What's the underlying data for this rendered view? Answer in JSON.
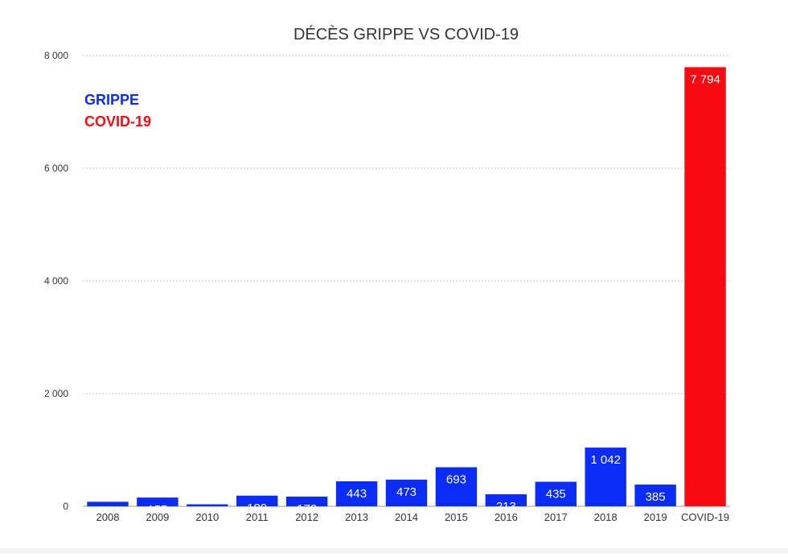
{
  "chart_data": {
    "type": "bar",
    "title": "DÉCÈS GRIPPE VS COVID-19",
    "xlabel": "",
    "ylabel": "",
    "ylim": [
      0,
      8000
    ],
    "grid": true,
    "y_ticks": [
      0,
      2000,
      4000,
      6000,
      8000
    ],
    "y_tick_labels": [
      "0",
      "2 000",
      "4 000",
      "6 000",
      "8 000"
    ],
    "categories": [
      "2008",
      "2009",
      "2010",
      "2011",
      "2012",
      "2013",
      "2014",
      "2015",
      "2016",
      "2017",
      "2018",
      "2019",
      "COVID-19"
    ],
    "values": [
      80,
      155,
      35,
      189,
      172,
      443,
      473,
      693,
      213,
      435,
      1042,
      385,
      7794
    ],
    "value_labels": [
      "",
      "155",
      "",
      "189",
      "172",
      "443",
      "473",
      "693",
      "213",
      "435",
      "1 042",
      "385",
      "7 794"
    ],
    "colors": [
      "#0A2CF5",
      "#0A2CF5",
      "#0A2CF5",
      "#0A2CF5",
      "#0A2CF5",
      "#0A2CF5",
      "#0A2CF5",
      "#0A2CF5",
      "#0A2CF5",
      "#0A2CF5",
      "#0A2CF5",
      "#0A2CF5",
      "#F90A13"
    ],
    "legend": {
      "placement": "top-left",
      "items": [
        {
          "label": "GRIPPE",
          "color": "#0A2CF5"
        },
        {
          "label": "COVID-19",
          "color": "#F90A13"
        }
      ]
    }
  }
}
